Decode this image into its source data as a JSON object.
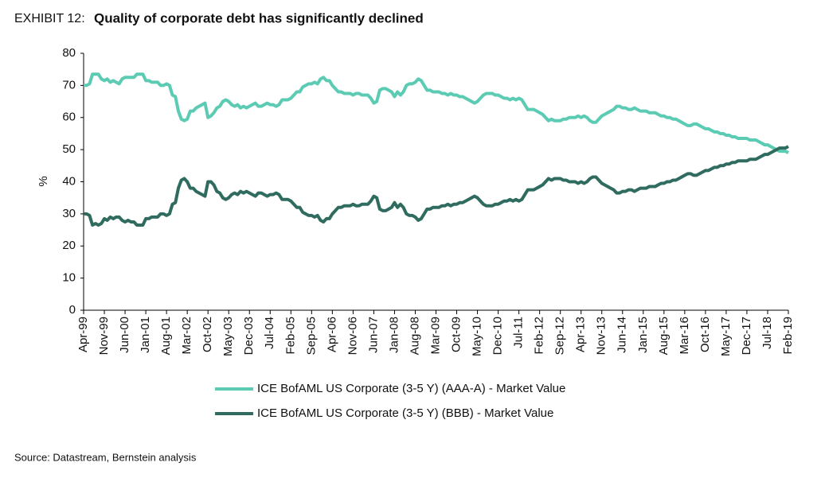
{
  "chart_data": {
    "type": "line",
    "label": "EXHIBIT 12:",
    "title": "Quality of corporate debt has significantly declined",
    "ylabel": "%",
    "source": "Source: Datastream, Bernstein analysis",
    "ylim": [
      0,
      80
    ],
    "yticks": [
      0,
      10,
      20,
      30,
      40,
      50,
      60,
      70,
      80
    ],
    "categories": [
      "Apr-99",
      null,
      null,
      null,
      null,
      null,
      null,
      "Nov-99",
      null,
      null,
      null,
      null,
      null,
      null,
      "Jun-00",
      null,
      null,
      null,
      null,
      null,
      null,
      "Jan-01",
      null,
      null,
      null,
      null,
      null,
      null,
      "Aug-01",
      null,
      null,
      null,
      null,
      null,
      null,
      "Mar-02",
      null,
      null,
      null,
      null,
      null,
      null,
      "Oct-02",
      null,
      null,
      null,
      null,
      null,
      null,
      "May-03",
      null,
      null,
      null,
      null,
      null,
      null,
      "Dec-03",
      null,
      null,
      null,
      null,
      null,
      null,
      "Jul-04",
      null,
      null,
      null,
      null,
      null,
      null,
      "Feb-05",
      null,
      null,
      null,
      null,
      null,
      null,
      "Sep-05",
      null,
      null,
      null,
      null,
      null,
      null,
      "Apr-06",
      null,
      null,
      null,
      null,
      null,
      null,
      "Nov-06",
      null,
      null,
      null,
      null,
      null,
      null,
      "Jun-07",
      null,
      null,
      null,
      null,
      null,
      null,
      "Jan-08",
      null,
      null,
      null,
      null,
      null,
      null,
      "Aug-08",
      null,
      null,
      null,
      null,
      null,
      null,
      "Mar-09",
      null,
      null,
      null,
      null,
      null,
      null,
      "Oct-09",
      null,
      null,
      null,
      null,
      null,
      null,
      "May-10",
      null,
      null,
      null,
      null,
      null,
      null,
      "Dec-10",
      null,
      null,
      null,
      null,
      null,
      null,
      "Jul-11",
      null,
      null,
      null,
      null,
      null,
      null,
      "Feb-12",
      null,
      null,
      null,
      null,
      null,
      null,
      "Sep-12",
      null,
      null,
      null,
      null,
      null,
      null,
      "Apr-13",
      null,
      null,
      null,
      null,
      null,
      null,
      "Nov-13",
      null,
      null,
      null,
      null,
      null,
      null,
      "Jun-14",
      null,
      null,
      null,
      null,
      null,
      null,
      "Jan-15",
      null,
      null,
      null,
      null,
      null,
      null,
      "Aug-15",
      null,
      null,
      null,
      null,
      null,
      null,
      "Mar-16",
      null,
      null,
      null,
      null,
      null,
      null,
      "Oct-16",
      null,
      null,
      null,
      null,
      null,
      null,
      "May-17",
      null,
      null,
      null,
      null,
      null,
      null,
      "Dec-17",
      null,
      null,
      null,
      null,
      null,
      null,
      "Jul-18",
      null,
      null,
      null,
      null,
      null,
      null,
      "Feb-19"
    ],
    "series": [
      {
        "name": "ICE BofAML US Corporate (3-5 Y) (AAA-A) - Market Value",
        "color": "#5ccbb3",
        "values": [
          70,
          70,
          70.5,
          73.5,
          73.5,
          73.5,
          72,
          71.5,
          72,
          71,
          71.5,
          71,
          70.5,
          72,
          72.5,
          72.5,
          72.5,
          72.5,
          73.5,
          73.5,
          73.5,
          71.5,
          71.5,
          71,
          71,
          71,
          70,
          70,
          70.5,
          70,
          67,
          66.5,
          62,
          59.5,
          59,
          59.5,
          62,
          62,
          63,
          63.5,
          64,
          64.5,
          60,
          60.5,
          61.5,
          63,
          63.5,
          65,
          65.5,
          65,
          64,
          63.5,
          64,
          63,
          63.5,
          63,
          63.5,
          64,
          64.5,
          63.5,
          63.5,
          64,
          64.5,
          64,
          64,
          63.5,
          64,
          65.5,
          65.5,
          65.5,
          66,
          67,
          68,
          68,
          69.5,
          70,
          70.5,
          70.5,
          71,
          70.5,
          72,
          72.5,
          71.5,
          71.5,
          70,
          69,
          68,
          68,
          67.5,
          67.5,
          67.5,
          67,
          67.5,
          67.5,
          67,
          67,
          67,
          66,
          64.5,
          65,
          68.5,
          69,
          69,
          68.5,
          68,
          66.5,
          68,
          67,
          68,
          70,
          70.5,
          70.5,
          71,
          72,
          71.5,
          70,
          68.5,
          68.5,
          68,
          68,
          68,
          67.5,
          67.5,
          67,
          67.5,
          67,
          67,
          66.5,
          66.5,
          66,
          65.5,
          65,
          64.5,
          65,
          66,
          67,
          67.5,
          67.5,
          67.5,
          67,
          67,
          66.5,
          66,
          66,
          65.5,
          66,
          65.5,
          66,
          65.5,
          64,
          62.5,
          62.5,
          62.5,
          62,
          61.5,
          61,
          60,
          59,
          59.5,
          59,
          59,
          59,
          59.5,
          59.5,
          60,
          60,
          60,
          60.5,
          60,
          60.5,
          60,
          59,
          58.5,
          58.5,
          59.5,
          60.5,
          61,
          61.5,
          62,
          62.5,
          63.5,
          63.5,
          63,
          63,
          62.5,
          62.5,
          63,
          62.5,
          62,
          62,
          62,
          61.5,
          61.5,
          61.5,
          61,
          60.5,
          60.5,
          60,
          60,
          59.5,
          59.5,
          59,
          58.5,
          58,
          57.5,
          57.5,
          58,
          58,
          57.5,
          57,
          56.5,
          56.5,
          56,
          55.5,
          55.5,
          55,
          55,
          54.5,
          54.5,
          54,
          54,
          53.5,
          53.5,
          53.5,
          53.5,
          53,
          53,
          53,
          52.5,
          52,
          51.5,
          51.5,
          51,
          50.5,
          50,
          49.5,
          49.5,
          49.5,
          49
        ]
      },
      {
        "name": "ICE BofAML US Corporate (3-5 Y) (BBB) - Market Value",
        "color": "#2f6b5f",
        "values": [
          30,
          30,
          29.5,
          26.5,
          27,
          26.5,
          27,
          28.5,
          28,
          29,
          28.5,
          29,
          29,
          28,
          27.5,
          28,
          27.5,
          27.5,
          26.5,
          26.5,
          26.5,
          28.5,
          28.5,
          29,
          29,
          29,
          30,
          30,
          29.5,
          30,
          33,
          33.5,
          38,
          40.5,
          41,
          40,
          38,
          38,
          37,
          36.5,
          36,
          35.5,
          40,
          40,
          39,
          37,
          36.5,
          35,
          34.5,
          35,
          36,
          36.5,
          36,
          37,
          36.5,
          37,
          36.5,
          36,
          35.5,
          36.5,
          36.5,
          36,
          35.5,
          36,
          36,
          36.5,
          36,
          34.5,
          34.5,
          34.5,
          34,
          33,
          32,
          32,
          30.5,
          30,
          29.5,
          29.5,
          29,
          29.5,
          28,
          27.5,
          28.5,
          28.5,
          30,
          31,
          32,
          32,
          32.5,
          32.5,
          32.5,
          33,
          32.5,
          32.5,
          33,
          33,
          33,
          34,
          35.5,
          35,
          31.5,
          31,
          31,
          31.5,
          32,
          33.5,
          32,
          33,
          32,
          30,
          29.5,
          29.5,
          29,
          28,
          28.5,
          30,
          31.5,
          31.5,
          32,
          32,
          32,
          32.5,
          32.5,
          33,
          32.5,
          33,
          33,
          33.5,
          33.5,
          34,
          34.5,
          35,
          35.5,
          35,
          34,
          33,
          32.5,
          32.5,
          32.5,
          33,
          33,
          33.5,
          34,
          34,
          34.5,
          34,
          34.5,
          34,
          34.5,
          36,
          37.5,
          37.5,
          37.5,
          38,
          38.5,
          39,
          40,
          41,
          40.5,
          41,
          41,
          41,
          40.5,
          40.5,
          40,
          40,
          40,
          39.5,
          40,
          39.5,
          40,
          41,
          41.5,
          41.5,
          40.5,
          39.5,
          39,
          38.5,
          38,
          37.5,
          36.5,
          36.5,
          37,
          37,
          37.5,
          37.5,
          37,
          37.5,
          38,
          38,
          38,
          38.5,
          38.5,
          38.5,
          39,
          39.5,
          39.5,
          40,
          40,
          40.5,
          40.5,
          41,
          41.5,
          42,
          42.5,
          42.5,
          42,
          42,
          42.5,
          43,
          43.5,
          43.5,
          44,
          44.5,
          44.5,
          45,
          45,
          45.5,
          45.5,
          46,
          46,
          46.5,
          46.5,
          46.5,
          46.5,
          47,
          47,
          47,
          47.5,
          48,
          48.5,
          48.5,
          49,
          49.5,
          50,
          50.5,
          50.5,
          50.5,
          51
        ]
      }
    ]
  }
}
